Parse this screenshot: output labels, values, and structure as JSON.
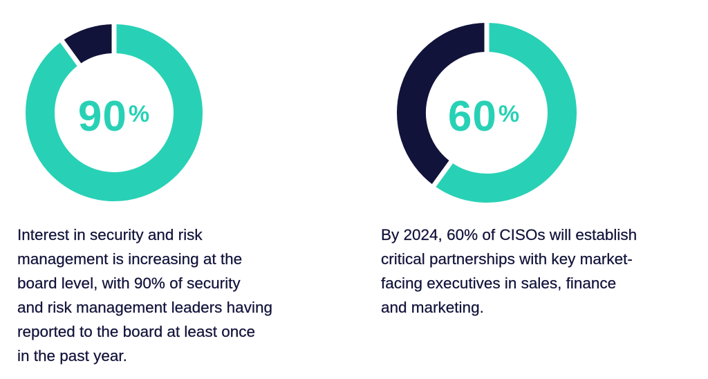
{
  "colors": {
    "accent": "#28d1b5",
    "dark": "#12133a",
    "background": "#ffffff"
  },
  "chart_data": [
    {
      "type": "pie",
      "style": "donut",
      "label": "90%",
      "number_text": "90",
      "symbol_text": "%",
      "values": [
        90,
        10
      ],
      "colors": [
        "#28d1b5",
        "#12133a"
      ],
      "caption_lines": [
        "Interest in security and risk",
        "management is increasing at the",
        "board level, with 90% of security",
        "and risk management leaders having",
        "reported to the board at least once",
        "in the past year."
      ]
    },
    {
      "type": "pie",
      "style": "donut",
      "label": "60%",
      "number_text": "60",
      "symbol_text": "%",
      "values": [
        60,
        40
      ],
      "colors": [
        "#28d1b5",
        "#12133a"
      ],
      "caption_lines": [
        "By 2024, 60% of CISOs will establish",
        "critical partnerships with key market-",
        "facing executives in sales, finance",
        "and marketing."
      ]
    }
  ]
}
